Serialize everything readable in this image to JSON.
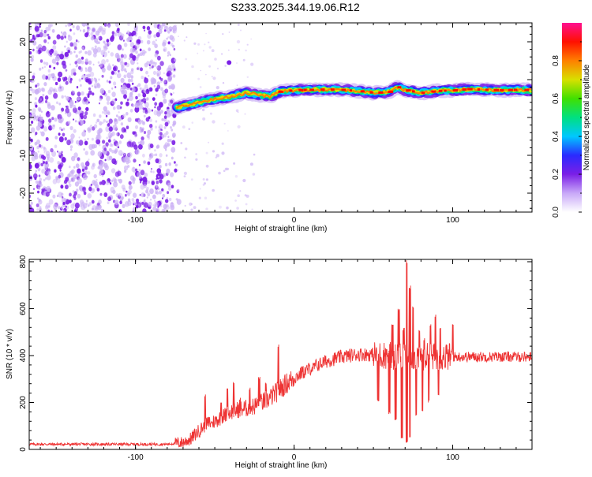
{
  "title": "S233.2025.344.19.06.R12",
  "colors": {
    "snr_line": "#ee3333",
    "axis": "#000000",
    "scatter_purple": "#7b1fe6",
    "scatter_light": "#cbb0f5"
  },
  "chart_data": [
    {
      "type": "heatmap",
      "xlabel": "Height of straight line (km)",
      "ylabel": "Frequency (Hz)",
      "xlim": [
        -167,
        150
      ],
      "ylim": [
        -25,
        25
      ],
      "xticks": [
        -100,
        0,
        100
      ],
      "xtick_labels": [
        "-100",
        "0",
        "100"
      ],
      "yticks": [
        -20,
        -10,
        0,
        10,
        20
      ],
      "ytick_labels": [
        "-20",
        "-10",
        "0",
        "10",
        "20"
      ],
      "noise_region_x": [
        -167,
        -75
      ],
      "signal_band": {
        "x_start": -74,
        "x_end": 150,
        "points": [
          [
            -74,
            2.5
          ],
          [
            -70,
            3.0
          ],
          [
            -65,
            3.5
          ],
          [
            -60,
            4.0
          ],
          [
            -55,
            4.5
          ],
          [
            -50,
            4.8
          ],
          [
            -45,
            5.2
          ],
          [
            -40,
            5.5
          ],
          [
            -35,
            6.0
          ],
          [
            -30,
            6.5
          ],
          [
            -25,
            6.2
          ],
          [
            -20,
            5.8
          ],
          [
            -15,
            5.5
          ],
          [
            -10,
            6.8
          ],
          [
            -5,
            7.0
          ],
          [
            0,
            7.2
          ],
          [
            10,
            7.3
          ],
          [
            20,
            7.4
          ],
          [
            30,
            7.3
          ],
          [
            40,
            7.0
          ],
          [
            50,
            6.5
          ],
          [
            60,
            6.8
          ],
          [
            65,
            8.0
          ],
          [
            70,
            7.2
          ],
          [
            80,
            6.5
          ],
          [
            90,
            7.0
          ],
          [
            100,
            7.2
          ],
          [
            110,
            7.5
          ],
          [
            120,
            7.3
          ],
          [
            130,
            7.2
          ],
          [
            140,
            7.3
          ],
          [
            150,
            7.2
          ]
        ]
      }
    },
    {
      "type": "colorbar",
      "label": "Normalized spectral amplitude",
      "range": [
        0,
        1
      ],
      "ticks": [
        0.0,
        0.2,
        0.4,
        0.6,
        0.8
      ],
      "tick_labels": [
        "0.0",
        "0.2",
        "0.4",
        "0.6",
        "0.8"
      ],
      "colormap": [
        "#ffffff",
        "#c8a8f8",
        "#7b1fe6",
        "#2a2aff",
        "#00c8ff",
        "#00e080",
        "#40e000",
        "#d8e000",
        "#ff8000",
        "#ff1000",
        "#ff1090"
      ]
    },
    {
      "type": "line",
      "xlabel": "Height of straight line (km)",
      "ylabel": "SNR (10 * v/v)",
      "xlim": [
        -167,
        150
      ],
      "ylim": [
        0,
        810
      ],
      "xticks": [
        -100,
        0,
        100
      ],
      "xtick_labels": [
        "-100",
        "0",
        "100"
      ],
      "yticks": [
        0,
        200,
        400,
        600,
        800
      ],
      "ytick_labels": [
        "0",
        "200",
        "400",
        "600",
        "800"
      ],
      "baseline": [
        [
          -167,
          22
        ],
        [
          -80,
          22
        ],
        [
          -70,
          30
        ],
        [
          -65,
          45
        ],
        [
          -60,
          80
        ],
        [
          -55,
          110
        ],
        [
          -50,
          120
        ],
        [
          -45,
          140
        ],
        [
          -40,
          160
        ],
        [
          -35,
          170
        ],
        [
          -30,
          175
        ],
        [
          -25,
          185
        ],
        [
          -20,
          200
        ],
        [
          -15,
          220
        ],
        [
          -10,
          250
        ],
        [
          -5,
          280
        ],
        [
          0,
          305
        ],
        [
          5,
          325
        ],
        [
          10,
          345
        ],
        [
          15,
          360
        ],
        [
          20,
          375
        ],
        [
          25,
          385
        ],
        [
          30,
          395
        ],
        [
          35,
          400
        ],
        [
          40,
          405
        ],
        [
          50,
          405
        ],
        [
          60,
          400
        ],
        [
          70,
          395
        ],
        [
          80,
          395
        ],
        [
          90,
          395
        ],
        [
          100,
          395
        ],
        [
          110,
          395
        ],
        [
          120,
          395
        ],
        [
          130,
          395
        ],
        [
          140,
          395
        ],
        [
          150,
          395
        ]
      ],
      "spikes": [
        [
          -56,
          235
        ],
        [
          -52,
          125
        ],
        [
          -46,
          200
        ],
        [
          -42,
          260
        ],
        [
          -38,
          295
        ],
        [
          -34,
          225
        ],
        [
          -28,
          270
        ],
        [
          -22,
          310
        ],
        [
          -18,
          295
        ],
        [
          -10,
          450
        ],
        [
          5,
          360
        ],
        [
          12,
          375
        ],
        [
          58,
          440
        ],
        [
          62,
          540
        ],
        [
          66,
          600
        ],
        [
          69,
          520
        ],
        [
          71,
          810
        ],
        [
          73,
          700
        ],
        [
          75,
          610
        ],
        [
          79,
          520
        ],
        [
          82,
          480
        ],
        [
          86,
          540
        ],
        [
          89,
          580
        ],
        [
          92,
          520
        ],
        [
          96,
          460
        ],
        [
          100,
          540
        ]
      ],
      "dips": [
        [
          53,
          200
        ],
        [
          60,
          150
        ],
        [
          64,
          120
        ],
        [
          68,
          40
        ],
        [
          71,
          25
        ],
        [
          73,
          50
        ],
        [
          77,
          140
        ],
        [
          81,
          160
        ],
        [
          85,
          200
        ],
        [
          91,
          230
        ]
      ]
    }
  ]
}
